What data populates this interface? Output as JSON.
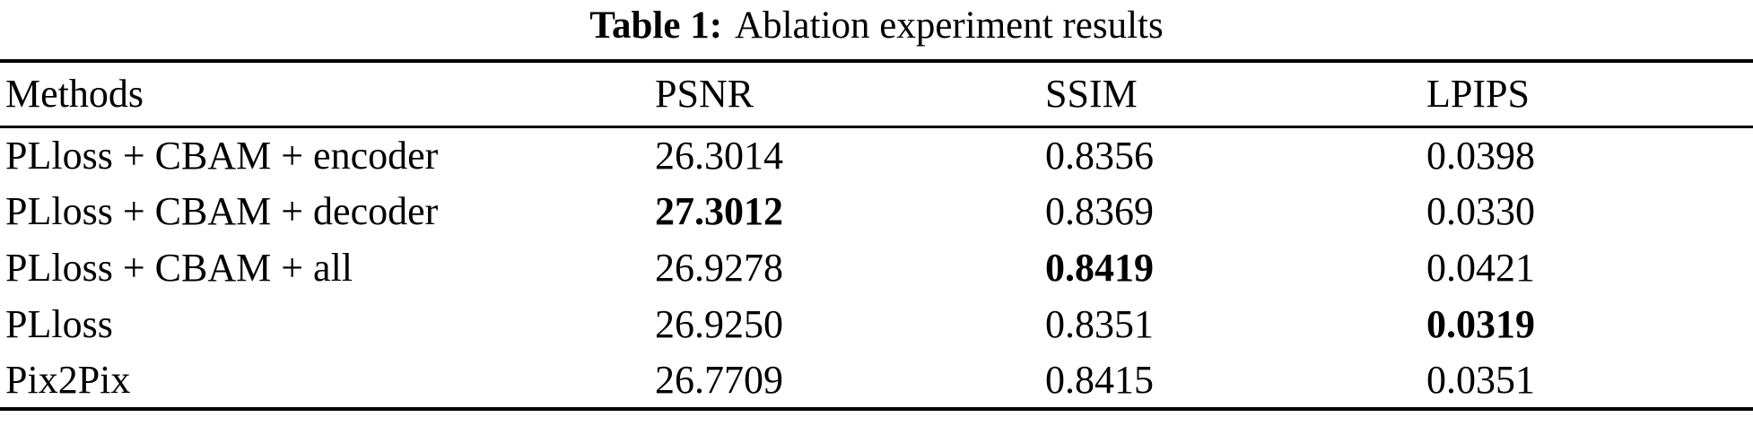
{
  "caption": {
    "label": "Table 1:",
    "text": "Ablation experiment results"
  },
  "table": {
    "columns": {
      "methods": "Methods",
      "psnr": "PSNR",
      "ssim": "SSIM",
      "lpips": "LPIPS"
    },
    "rows": [
      {
        "method": "PLloss + CBAM + encoder",
        "psnr": "26.3014",
        "ssim": "0.8356",
        "lpips": "0.0398",
        "bold": []
      },
      {
        "method": "PLloss + CBAM + decoder",
        "psnr": "27.3012",
        "ssim": "0.8369",
        "lpips": "0.0330",
        "bold": [
          "psnr"
        ]
      },
      {
        "method": "PLloss + CBAM + all",
        "psnr": "26.9278",
        "ssim": "0.8419",
        "lpips": "0.0421",
        "bold": [
          "ssim"
        ]
      },
      {
        "method": "PLloss",
        "psnr": "26.9250",
        "ssim": "0.8351",
        "lpips": "0.0319",
        "bold": [
          "lpips"
        ]
      },
      {
        "method": "Pix2Pix",
        "psnr": "26.7709",
        "ssim": "0.8415",
        "lpips": "0.0351",
        "bold": []
      }
    ]
  },
  "colors": {
    "text": "#000000",
    "background": "#ffffff",
    "rule": "#000000"
  }
}
